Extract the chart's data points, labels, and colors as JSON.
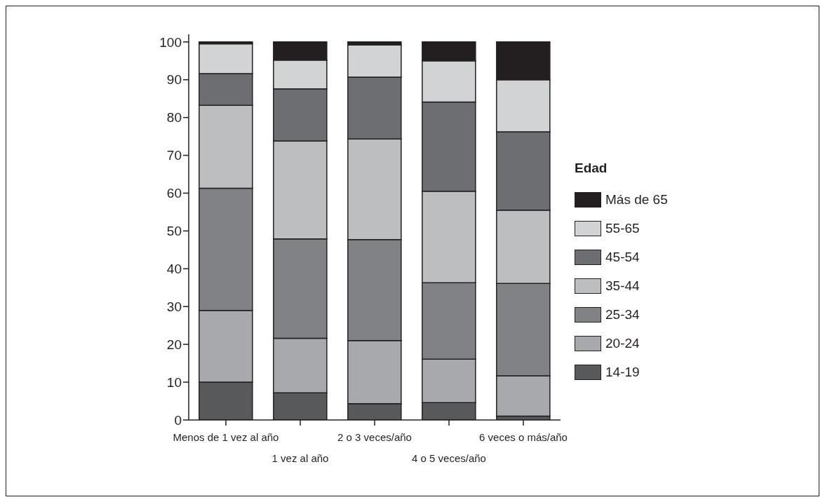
{
  "chart_data": {
    "type": "bar",
    "stacked": true,
    "legend": "right",
    "legend_title": "Edad",
    "categories": [
      "Menos de 1 vez al año",
      "1 vez al año",
      "2 o 3 veces/año",
      "4 o 5 veces/año",
      "6 veces o más/año"
    ],
    "series": [
      {
        "name": "14-19",
        "color": "#58595b",
        "values": [
          10,
          7.2,
          4.3,
          4.6,
          1.0
        ]
      },
      {
        "name": "20-24",
        "color": "#a7a9ac",
        "values": [
          19,
          14.4,
          16.7,
          11.5,
          10.7
        ]
      },
      {
        "name": "25-34",
        "color": "#808285",
        "values": [
          32.3,
          26.3,
          26.7,
          20.2,
          24.4
        ]
      },
      {
        "name": "35-44",
        "color": "#bcbec0",
        "values": [
          21.9,
          25.9,
          26.6,
          24.2,
          19.4
        ]
      },
      {
        "name": "45-54",
        "color": "#6d6e71",
        "values": [
          8.4,
          13.8,
          16.4,
          23.6,
          20.7
        ]
      },
      {
        "name": "55-65",
        "color": "#d1d3d4",
        "values": [
          7.9,
          7.6,
          8.5,
          10.9,
          13.8
        ]
      },
      {
        "name": "Más de 65",
        "color": "#231f20",
        "values": [
          0.5,
          4.8,
          0.8,
          5.0,
          10.0
        ]
      }
    ],
    "ylim": [
      0,
      102
    ],
    "yticks": [
      0,
      10,
      20,
      30,
      40,
      50,
      60,
      70,
      80,
      90,
      100
    ],
    "grid": false
  }
}
